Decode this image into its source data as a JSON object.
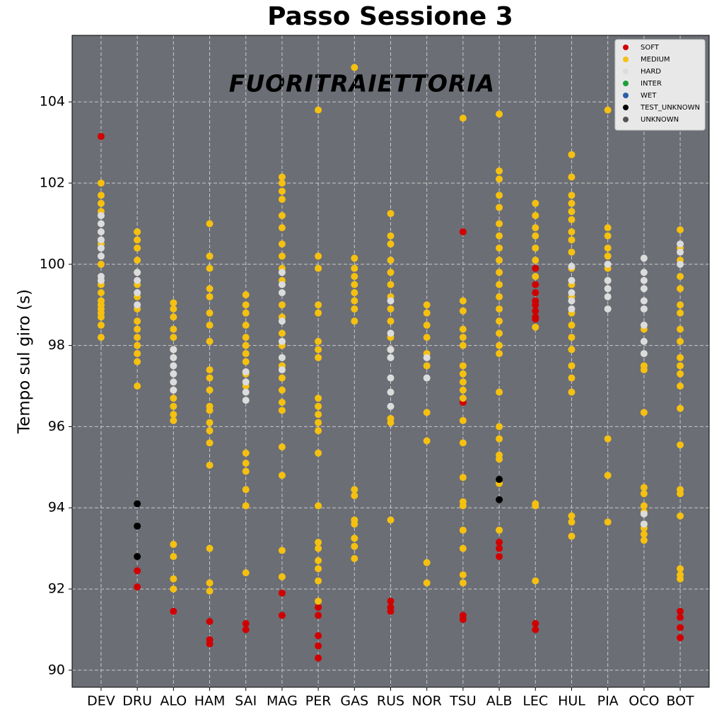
{
  "chart_data": {
    "type": "strip",
    "title": "Passo Sessione 3",
    "watermark": "FUORITRAIETTORIA",
    "y_label": "Tempo sul giro (s)",
    "categories": [
      "DEV",
      "DRU",
      "ALO",
      "HAM",
      "SAI",
      "MAG",
      "PER",
      "GAS",
      "RUS",
      "NOR",
      "TSU",
      "ALB",
      "LEC",
      "HUL",
      "PIA",
      "OCO",
      "BOT"
    ],
    "ylim": [
      89.58,
      105.64
    ],
    "yticks": [
      90,
      92,
      94,
      96,
      98,
      100,
      102,
      104
    ],
    "grid": true,
    "legend": "upper right",
    "series": [
      {
        "name": "SOFT",
        "color": "#d10000",
        "values": [
          [
            103.15
          ],
          [
            92.45,
            92.05
          ],
          [
            91.45
          ],
          [
            91.2,
            90.75,
            90.65
          ],
          [
            91.15,
            91.0
          ],
          [
            91.9,
            91.35
          ],
          [
            91.55,
            91.35,
            90.85,
            90.6,
            90.3
          ],
          [],
          [
            91.7,
            91.55,
            91.45
          ],
          [],
          [
            100.8,
            96.6,
            91.35,
            91.25
          ],
          [
            93.15,
            93.0,
            92.8
          ],
          [
            99.9,
            99.5,
            99.3,
            99.1,
            99.0,
            98.85,
            98.7,
            98.65,
            91.15,
            91.0
          ],
          [],
          [],
          [],
          [
            91.45,
            91.3,
            91.05,
            90.8
          ]
        ]
      },
      {
        "name": "MEDIUM",
        "color": "#f5c010",
        "values": [
          [
            102.0,
            101.7,
            101.5,
            101.3,
            100.5,
            100.0,
            99.5,
            99.3,
            99.1,
            98.9,
            98.7,
            98.5,
            98.2,
            99.0,
            98.8
          ],
          [
            100.8,
            100.6,
            100.4,
            100.1,
            99.8,
            99.5,
            99.2,
            98.9,
            98.6,
            98.4,
            98.2,
            98.0,
            97.8,
            97.6,
            97.0
          ],
          [
            99.05,
            98.9,
            98.7,
            98.4,
            98.2,
            97.9,
            96.9,
            96.7,
            96.5,
            96.3,
            96.15,
            93.1,
            92.8,
            92.25,
            92.0
          ],
          [
            101.0,
            100.2,
            99.9,
            99.4,
            99.2,
            98.8,
            98.5,
            98.1,
            97.4,
            97.2,
            96.9,
            96.5,
            96.4,
            96.1,
            95.9,
            95.6,
            95.05,
            93.0,
            92.15,
            91.95
          ],
          [
            99.25,
            99.0,
            98.8,
            98.5,
            98.2,
            98.0,
            97.8,
            97.6,
            97.3,
            97.0,
            95.35,
            95.1,
            94.9,
            94.45,
            94.05,
            92.4
          ],
          [
            102.15,
            102.0,
            101.8,
            101.6,
            101.2,
            100.9,
            100.5,
            100.2,
            99.9,
            99.6,
            99.0,
            98.7,
            98.3,
            98.0,
            97.5,
            97.2,
            96.9,
            96.6,
            96.4,
            95.5,
            94.8,
            92.95,
            92.3
          ],
          [
            103.8,
            100.2,
            99.9,
            99.0,
            98.8,
            98.1,
            97.9,
            97.7,
            96.7,
            96.5,
            96.3,
            96.1,
            95.9,
            95.35,
            94.05,
            93.15,
            93.0,
            92.7,
            92.5,
            92.2,
            91.7
          ],
          [
            104.85,
            100.15,
            99.9,
            99.7,
            99.5,
            99.3,
            99.1,
            98.9,
            98.6,
            94.45,
            94.3,
            93.7,
            93.6,
            93.25,
            93.05,
            92.75
          ],
          [
            101.25,
            100.7,
            100.5,
            100.1,
            99.8,
            99.5,
            99.2,
            98.9,
            98.6,
            98.2,
            97.9,
            96.2,
            96.1,
            93.7
          ],
          [
            99.0,
            98.8,
            98.5,
            98.2,
            97.8,
            97.5,
            96.35,
            95.65,
            92.65,
            92.15
          ],
          [
            103.6,
            99.1,
            98.85,
            98.4,
            98.2,
            98.0,
            97.5,
            97.3,
            97.1,
            96.9,
            96.7,
            96.15,
            95.6,
            94.75,
            94.15,
            94.05,
            93.45,
            93.0,
            92.35,
            92.15
          ],
          [
            103.7,
            102.3,
            102.1,
            101.7,
            101.4,
            101.0,
            100.7,
            100.4,
            100.1,
            99.8,
            99.5,
            99.2,
            98.9,
            98.6,
            98.3,
            98.0,
            97.8,
            96.85,
            96.0,
            95.7,
            95.3,
            95.2,
            94.6,
            93.45
          ],
          [
            101.5,
            101.2,
            100.9,
            100.7,
            100.4,
            100.1,
            99.7,
            98.45,
            94.1,
            94.05,
            92.2
          ],
          [
            102.7,
            102.15,
            101.7,
            101.5,
            101.3,
            101.1,
            100.8,
            100.6,
            100.3,
            99.9,
            99.5,
            99.2,
            98.8,
            98.5,
            98.2,
            97.9,
            97.5,
            97.2,
            96.85,
            93.8,
            93.65,
            93.3
          ],
          [
            103.8,
            100.9,
            100.7,
            100.4,
            100.2,
            99.9,
            99.6,
            95.7,
            94.8,
            93.65
          ],
          [
            98.4,
            97.5,
            97.4,
            96.35,
            94.5,
            94.35,
            94.05,
            93.9,
            93.6,
            93.5,
            93.35,
            93.2
          ],
          [
            100.85,
            100.4,
            100.1,
            99.7,
            99.4,
            99.0,
            98.8,
            98.4,
            98.1,
            97.7,
            97.5,
            97.3,
            97.0,
            96.45,
            95.55,
            94.45,
            94.35,
            93.8,
            92.5,
            92.35,
            92.25
          ]
        ]
      },
      {
        "name": "HARD",
        "color": "#dcdcdc",
        "values": [
          [
            101.2,
            101.0,
            100.8,
            100.6,
            100.4,
            100.2,
            99.7,
            99.6
          ],
          [
            99.8,
            99.6,
            99.3,
            99.0
          ],
          [
            97.9,
            97.7,
            97.5,
            97.3,
            97.1,
            96.9
          ],
          [],
          [
            97.35,
            97.1,
            96.85,
            96.65
          ],
          [
            99.8,
            99.5,
            99.3,
            98.6,
            98.1,
            97.7,
            97.4
          ],
          [],
          [],
          [
            99.1,
            98.3,
            97.9,
            97.7,
            97.2,
            96.85,
            96.5
          ],
          [
            97.7,
            97.2
          ],
          [],
          [],
          [],
          [
            99.95,
            99.6,
            99.3,
            99.1,
            98.9
          ],
          [
            100.0,
            99.6,
            99.4,
            99.2,
            98.9
          ],
          [
            100.15,
            99.8,
            99.6,
            99.4,
            99.1,
            98.9,
            98.5,
            98.1,
            97.8,
            93.85,
            93.6
          ],
          [
            100.5,
            100.3,
            100.0
          ]
        ]
      },
      {
        "name": "INTER",
        "color": "#1f9e3a",
        "values": [
          [],
          [],
          [],
          [],
          [],
          [],
          [],
          [],
          [],
          [],
          [],
          [],
          [],
          [],
          [],
          [],
          []
        ]
      },
      {
        "name": "WET",
        "color": "#2a5fa8",
        "values": [
          [],
          [],
          [],
          [],
          [],
          [],
          [],
          [],
          [],
          [],
          [],
          [],
          [],
          [],
          [],
          [],
          []
        ]
      },
      {
        "name": "TEST_UNKNOWN",
        "color": "#000000",
        "values": [
          [],
          [
            94.1,
            93.55,
            92.8
          ],
          [],
          [],
          [],
          [],
          [],
          [],
          [],
          [],
          [],
          [
            94.7,
            94.2
          ],
          [],
          [],
          [],
          [],
          []
        ]
      },
      {
        "name": "UNKNOWN",
        "color": "#545454",
        "values": [
          [],
          [],
          [],
          [],
          [],
          [],
          [],
          [],
          [],
          [],
          [],
          [],
          [],
          [],
          [],
          [],
          []
        ]
      }
    ]
  }
}
